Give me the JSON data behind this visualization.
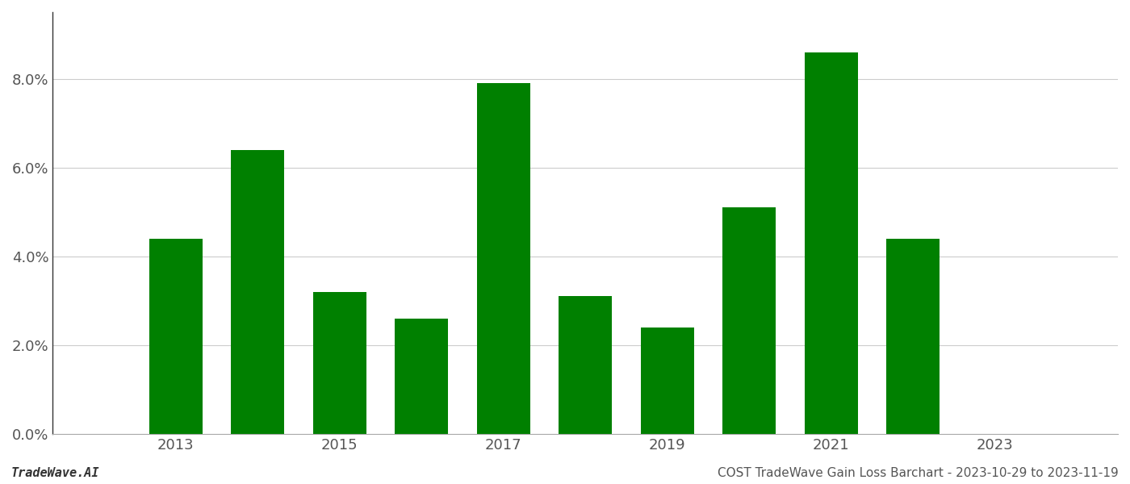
{
  "years": [
    2013,
    2014,
    2015,
    2016,
    2017,
    2018,
    2019,
    2020,
    2021,
    2022
  ],
  "values": [
    0.044,
    0.064,
    0.032,
    0.026,
    0.079,
    0.031,
    0.024,
    0.051,
    0.086,
    0.044
  ],
  "bar_color": "#008000",
  "background_color": "#ffffff",
  "ylim": [
    0,
    0.095
  ],
  "yticks": [
    0.0,
    0.02,
    0.04,
    0.06,
    0.08
  ],
  "xlabel": "",
  "ylabel": "",
  "footer_left": "TradeWave.AI",
  "footer_right": "COST TradeWave Gain Loss Barchart - 2023-10-29 to 2023-11-19",
  "grid_color": "#cccccc",
  "title": "",
  "bar_width": 0.65,
  "xtick_labels": [
    "2013",
    "2015",
    "2017",
    "2019",
    "2021",
    "2023"
  ],
  "xtick_positions": [
    2013,
    2015,
    2017,
    2019,
    2021,
    2023
  ],
  "left_spine_color": "#333333",
  "bottom_spine_color": "#aaaaaa"
}
